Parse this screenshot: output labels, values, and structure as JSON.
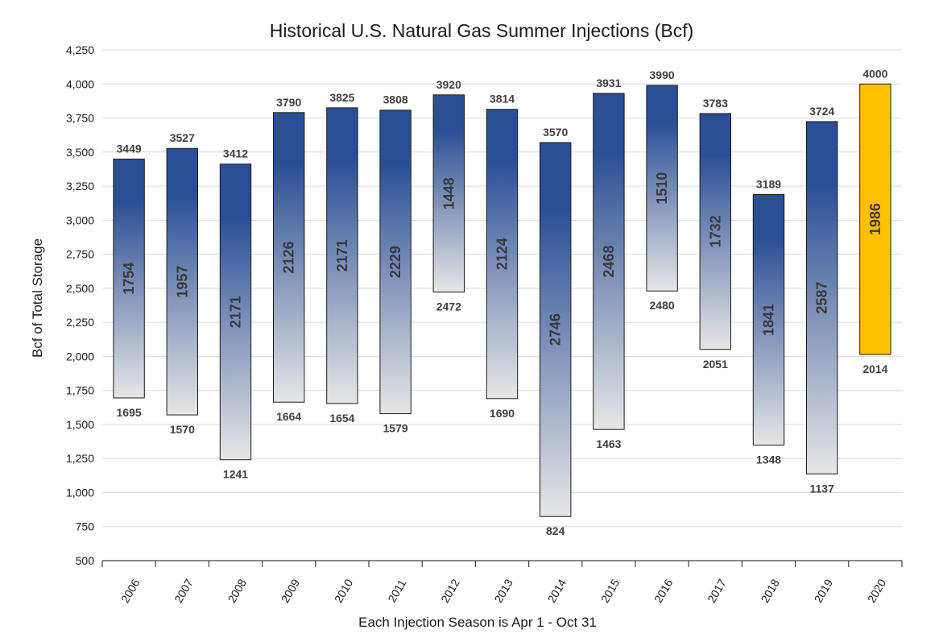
{
  "chart_data": {
    "type": "bar",
    "subtype": "floating-range",
    "title": "Historical U.S. Natural Gas Summer Injections (Bcf)",
    "xlabel": "Each Injection Season is Apr 1 - Oct 31",
    "ylabel": "Bcf of Total Storage",
    "ylim": [
      500,
      4250
    ],
    "yticks": [
      500,
      750,
      1000,
      1250,
      1500,
      1750,
      2000,
      2250,
      2500,
      2750,
      3000,
      3250,
      3500,
      3750,
      4000,
      4250
    ],
    "ytick_labels": [
      "500",
      "750",
      "1,000",
      "1,250",
      "1,500",
      "1,750",
      "2,000",
      "2,250",
      "2,500",
      "2,750",
      "3,000",
      "3,250",
      "3,500",
      "3,750",
      "4,000",
      "4,250"
    ],
    "grid": true,
    "categories": [
      "2006",
      "2007",
      "2008",
      "2009",
      "2010",
      "2011",
      "2012",
      "2013",
      "2014",
      "2015",
      "2016",
      "2017",
      "2018",
      "2019",
      "2020"
    ],
    "low": [
      1695,
      1570,
      1241,
      1664,
      1654,
      1579,
      2472,
      1690,
      824,
      1463,
      2480,
      2051,
      1348,
      1137,
      2014
    ],
    "high": [
      3449,
      3527,
      3412,
      3790,
      3825,
      3808,
      3920,
      3814,
      3570,
      3931,
      3990,
      3783,
      3189,
      3724,
      4000
    ],
    "injection": [
      1754,
      1957,
      2171,
      2126,
      2171,
      2229,
      1448,
      2124,
      2746,
      2468,
      1510,
      1732,
      1841,
      2587,
      1986
    ],
    "colors": {
      "bar_top": "#2b4f96",
      "bar_bottom": "#e3e3e3",
      "highlight": "#ffc000",
      "grid": "#d9d9d9"
    },
    "highlight_category": "2020"
  }
}
